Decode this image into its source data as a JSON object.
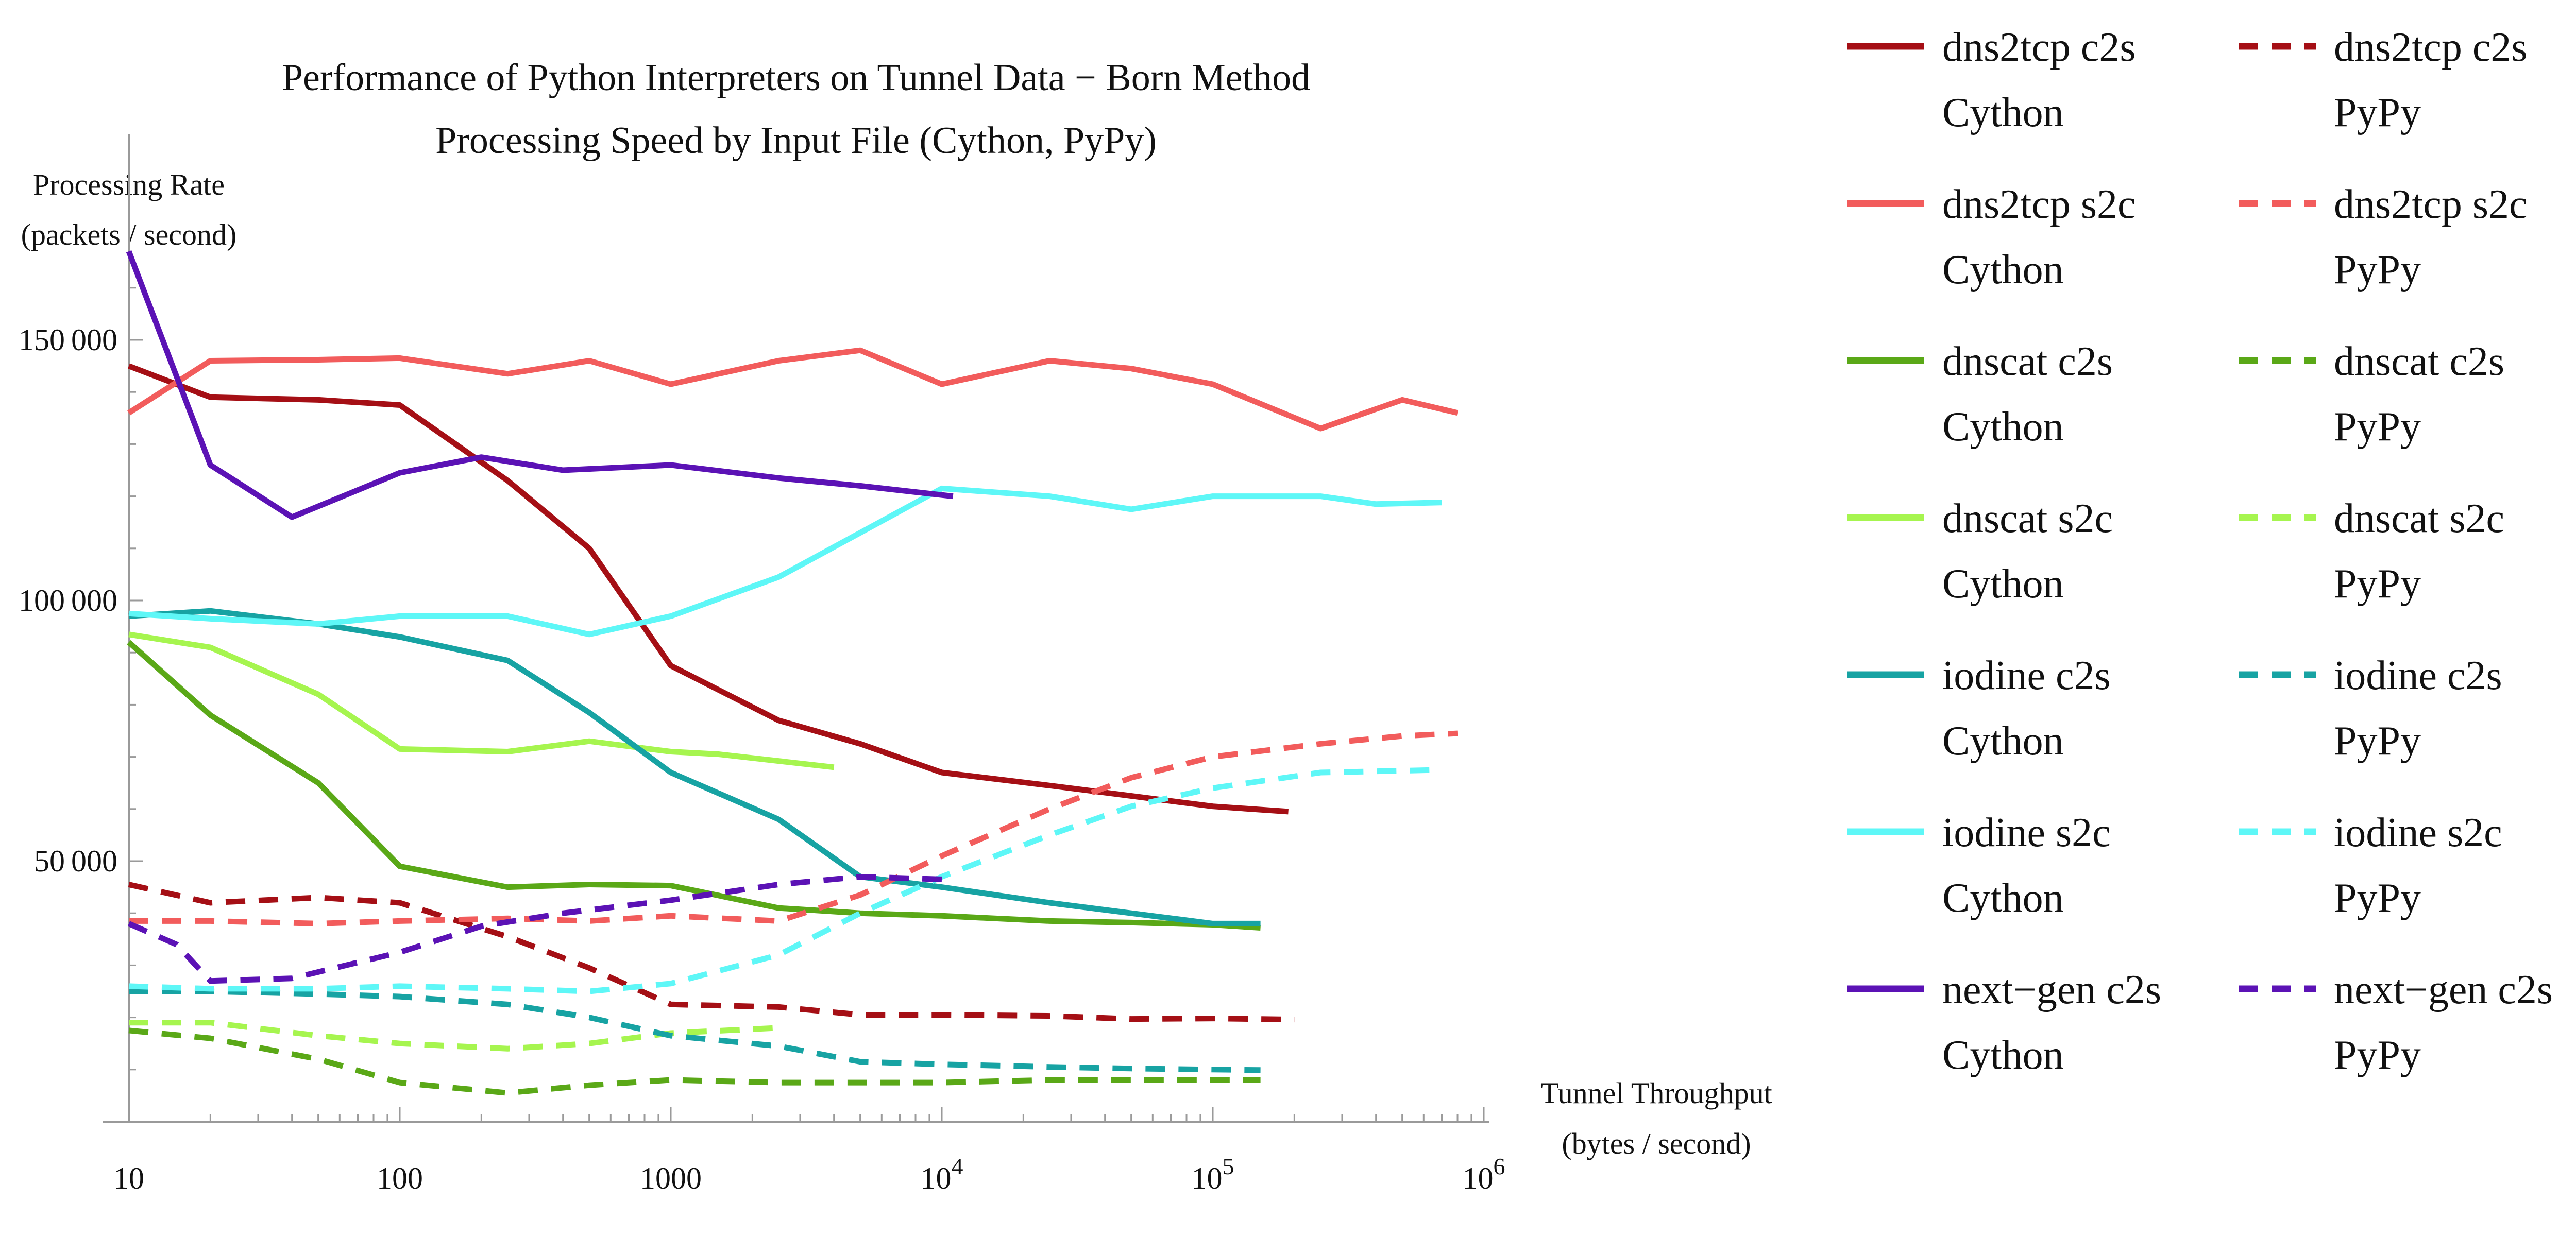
{
  "chart_data": {
    "type": "line",
    "title": "Performance of Python Interpreters on Tunnel Data − Born Method",
    "subtitle": "Processing Speed by Input File (Cython, PyPy)",
    "xlabel": [
      "Tunnel Throughput",
      "(bytes / second)"
    ],
    "ylabel": [
      "Processing Rate",
      "(packets / second)"
    ],
    "x_scale": "log",
    "xlim": [
      10,
      1000000
    ],
    "ylim": [
      0,
      170000
    ],
    "x_ticks": [
      {
        "value": 10,
        "base": "10",
        "exp": ""
      },
      {
        "value": 100,
        "base": "100",
        "exp": ""
      },
      {
        "value": 1000,
        "base": "1000",
        "exp": ""
      },
      {
        "value": 10000,
        "base": "10",
        "exp": "4"
      },
      {
        "value": 100000,
        "base": "10",
        "exp": "5"
      },
      {
        "value": 1000000,
        "base": "10",
        "exp": "6"
      }
    ],
    "y_ticks": [
      {
        "value": 50000,
        "label": "50 000"
      },
      {
        "value": 100000,
        "label": "100 000"
      },
      {
        "value": 150000,
        "label": "150 000"
      }
    ],
    "grid": false,
    "legend_position": "right",
    "series": [
      {
        "name": "dns2tcp c2s",
        "interpreter": "Cython",
        "color": "#a50f15",
        "dash": "solid",
        "x": [
          10,
          20,
          50,
          100,
          250,
          500,
          1000,
          2500,
          5000,
          10000,
          25000,
          50000,
          100000,
          190000
        ],
        "y": [
          145000,
          139000,
          138500,
          137500,
          123000,
          110000,
          87500,
          77000,
          72500,
          67000,
          64500,
          62500,
          60500,
          59500
        ]
      },
      {
        "name": "dns2tcp s2c",
        "interpreter": "Cython",
        "color": "#f25c5c",
        "dash": "solid",
        "x": [
          10,
          20,
          50,
          100,
          250,
          500,
          1000,
          2500,
          5000,
          10000,
          25000,
          50000,
          100000,
          250000,
          500000,
          800000
        ],
        "y": [
          136000,
          146000,
          146200,
          146500,
          143500,
          146000,
          141500,
          146000,
          148000,
          141500,
          146000,
          144500,
          141500,
          133000,
          138500,
          136000
        ]
      },
      {
        "name": "dnscat c2s",
        "interpreter": "Cython",
        "color": "#5aa817",
        "dash": "solid",
        "x": [
          10,
          20,
          50,
          100,
          250,
          500,
          1000,
          2500,
          5000,
          10000,
          25000,
          50000,
          100000,
          150000
        ],
        "y": [
          92000,
          78000,
          65000,
          49000,
          45000,
          45500,
          45300,
          41000,
          40000,
          39500,
          38500,
          38200,
          37800,
          37200
        ]
      },
      {
        "name": "dnscat s2c",
        "interpreter": "Cython",
        "color": "#a6f54f",
        "dash": "solid",
        "x": [
          10,
          20,
          50,
          100,
          250,
          500,
          1000,
          1500,
          4000
        ],
        "y": [
          93500,
          91000,
          82000,
          71500,
          71000,
          73000,
          71000,
          70500,
          68000
        ]
      },
      {
        "name": "iodine c2s",
        "interpreter": "Cython",
        "color": "#17a3a3",
        "dash": "solid",
        "x": [
          10,
          20,
          50,
          100,
          250,
          500,
          1000,
          2500,
          5000,
          10000,
          25000,
          50000,
          100000,
          150000
        ],
        "y": [
          97000,
          98000,
          95500,
          93000,
          88500,
          78500,
          67000,
          58000,
          47000,
          45000,
          42000,
          40000,
          38000,
          38000
        ]
      },
      {
        "name": "iodine s2c",
        "interpreter": "Cython",
        "color": "#5ef7f7",
        "dash": "solid",
        "x": [
          10,
          20,
          50,
          100,
          250,
          500,
          1000,
          2500,
          5000,
          10000,
          25000,
          50000,
          100000,
          250000,
          400000,
          700000
        ],
        "y": [
          97500,
          96500,
          95500,
          97000,
          97000,
          93500,
          97000,
          104500,
          113000,
          121500,
          120000,
          117500,
          120000,
          120000,
          118500,
          118800
        ]
      },
      {
        "name": "next−gen c2s",
        "interpreter": "Cython",
        "color": "#5b12b5",
        "dash": "solid",
        "x": [
          10,
          20,
          40,
          100,
          200,
          400,
          1000,
          2500,
          5000,
          11000
        ],
        "y": [
          167000,
          126000,
          116000,
          124500,
          127500,
          125000,
          126000,
          123500,
          122000,
          120000
        ]
      },
      {
        "name": "dns2tcp c2s",
        "interpreter": "PyPy",
        "color": "#a50f15",
        "dash": "dashed",
        "x": [
          10,
          20,
          50,
          100,
          250,
          500,
          1000,
          2500,
          5000,
          10000,
          25000,
          50000,
          100000,
          200000
        ],
        "y": [
          45500,
          42000,
          43000,
          42000,
          35500,
          29500,
          22500,
          22000,
          20500,
          20500,
          20300,
          19700,
          19800,
          19600
        ]
      },
      {
        "name": "dns2tcp s2c",
        "interpreter": "PyPy",
        "color": "#f25c5c",
        "dash": "dashed",
        "x": [
          10,
          20,
          50,
          100,
          250,
          500,
          1000,
          2500,
          5000,
          10000,
          25000,
          50000,
          100000,
          250000,
          500000,
          800000
        ],
        "y": [
          38500,
          38500,
          38000,
          38500,
          39000,
          38500,
          39500,
          38500,
          43500,
          51000,
          60000,
          66000,
          70000,
          72500,
          74000,
          74500
        ]
      },
      {
        "name": "dnscat c2s",
        "interpreter": "PyPy",
        "color": "#5aa817",
        "dash": "dashed",
        "x": [
          10,
          20,
          50,
          100,
          250,
          500,
          1000,
          2500,
          5000,
          10000,
          25000,
          50000,
          100000,
          150000
        ],
        "y": [
          17500,
          16000,
          12000,
          7500,
          5500,
          7000,
          8000,
          7500,
          7500,
          7500,
          8000,
          8000,
          8000,
          8000
        ]
      },
      {
        "name": "dnscat s2c",
        "interpreter": "PyPy",
        "color": "#a6f54f",
        "dash": "dashed",
        "x": [
          10,
          20,
          50,
          100,
          250,
          500,
          1000,
          2500
        ],
        "y": [
          19000,
          19000,
          16500,
          15000,
          14000,
          15000,
          17000,
          18000
        ]
      },
      {
        "name": "iodine c2s",
        "interpreter": "PyPy",
        "color": "#17a3a3",
        "dash": "dashed",
        "x": [
          10,
          20,
          50,
          100,
          250,
          500,
          1000,
          2500,
          5000,
          10000,
          25000,
          50000,
          100000,
          150000
        ],
        "y": [
          25000,
          25000,
          24500,
          24000,
          22500,
          20000,
          16500,
          14500,
          11500,
          11000,
          10500,
          10200,
          10000,
          9900
        ]
      },
      {
        "name": "iodine s2c",
        "interpreter": "PyPy",
        "color": "#5ef7f7",
        "dash": "dashed",
        "x": [
          10,
          20,
          50,
          100,
          250,
          500,
          1000,
          2500,
          5000,
          10000,
          25000,
          50000,
          100000,
          250000,
          700000
        ],
        "y": [
          26000,
          25500,
          25500,
          26000,
          25500,
          25000,
          26500,
          32000,
          40000,
          47000,
          55000,
          60500,
          64000,
          67000,
          67500
        ]
      },
      {
        "name": "next−gen c2s",
        "interpreter": "PyPy",
        "color": "#5b12b5",
        "dash": "dashed",
        "x": [
          10,
          15,
          20,
          40,
          100,
          200,
          400,
          1000,
          2500,
          5000,
          10000
        ],
        "y": [
          38000,
          34000,
          27000,
          27500,
          32500,
          37500,
          40000,
          42500,
          45500,
          47000,
          46500
        ]
      }
    ]
  }
}
